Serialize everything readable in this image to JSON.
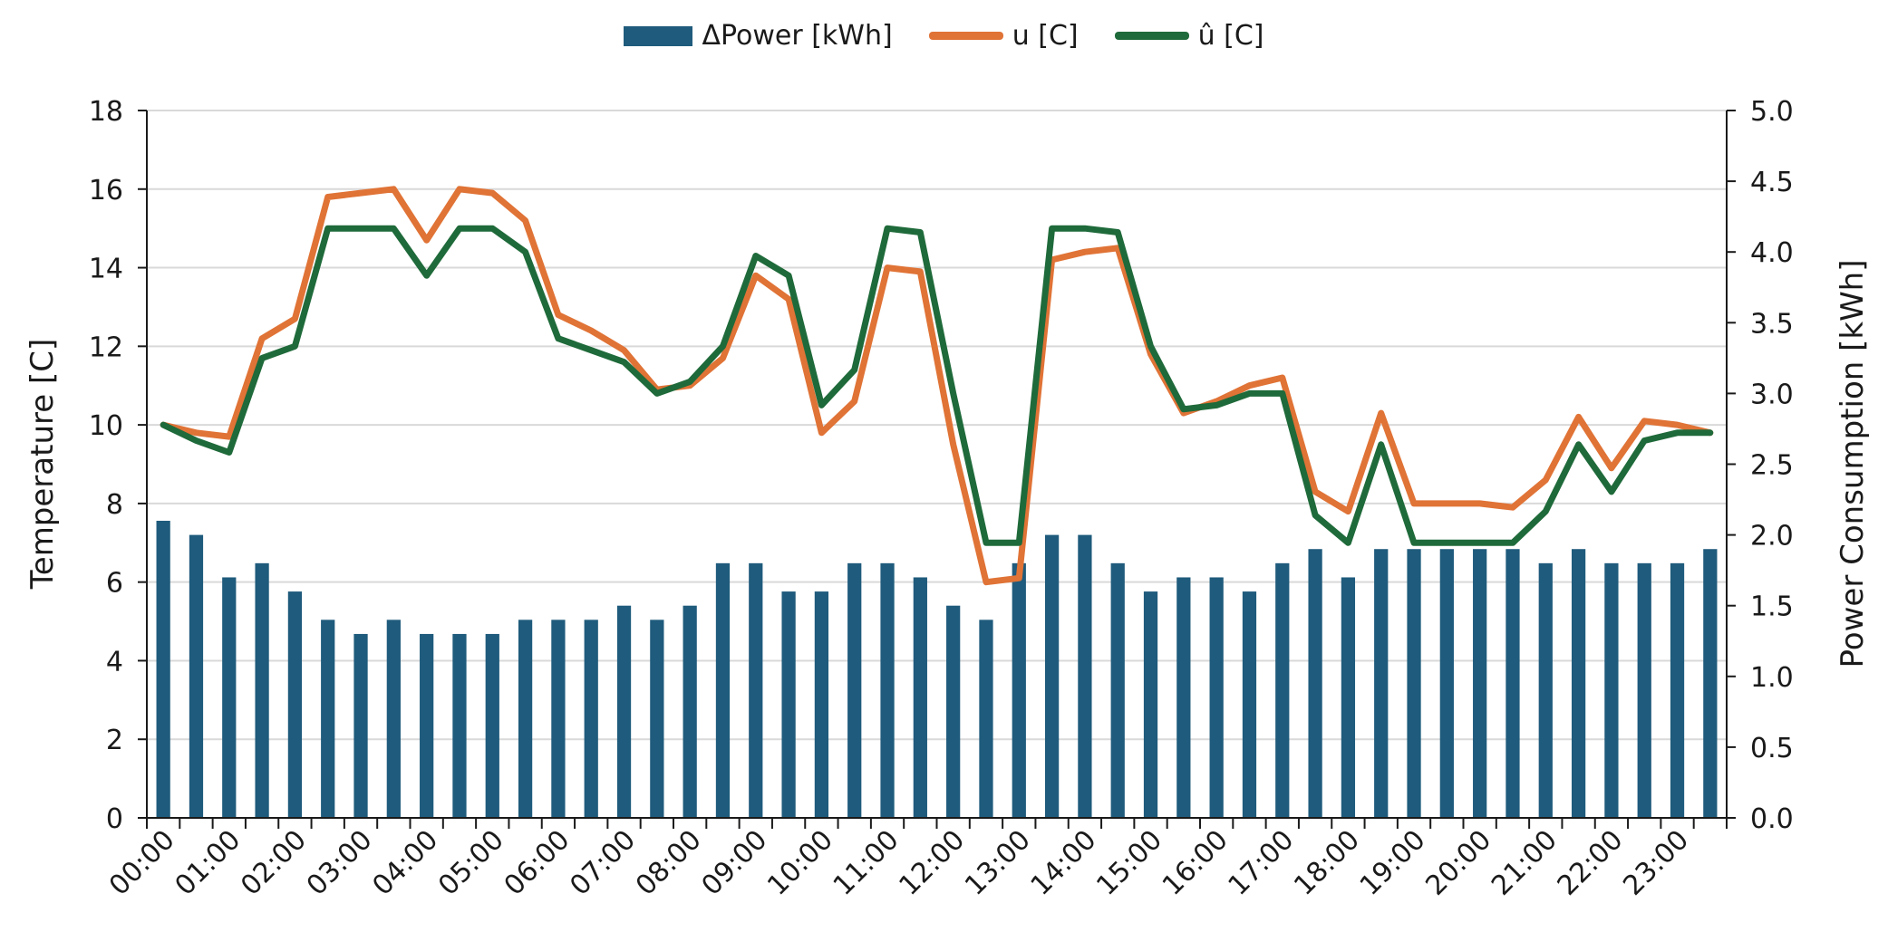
{
  "chart_data": {
    "type": "bar+line",
    "title": "",
    "legend": {
      "placement": "top-center",
      "entries": [
        "ΔPower [kWh]",
        "u [C]",
        "û [C]"
      ]
    },
    "colors": {
      "bar": "#1f5b7c",
      "u": "#e07336",
      "u_hat": "#1f6a3a",
      "grid": "#d9d9d9",
      "axis": "#1a1a1a"
    },
    "ylabel_left": "Temperature [C]",
    "ylabel_right": "Power Consumption [kWh]",
    "ylim_left": [
      0,
      18
    ],
    "ylim_right": [
      0,
      5
    ],
    "yticks_left": [
      "0",
      "2",
      "4",
      "6",
      "8",
      "10",
      "12",
      "14",
      "16",
      "18"
    ],
    "yticks_right": [
      "0.0",
      "0.5",
      "1.0",
      "1.5",
      "2.0",
      "2.5",
      "3.0",
      "3.5",
      "4.0",
      "4.5",
      "5.0"
    ],
    "grid": true,
    "x_tick_labels": [
      "00:00",
      "01:00",
      "02:00",
      "03:00",
      "04:00",
      "05:00",
      "06:00",
      "07:00",
      "08:00",
      "09:00",
      "10:00",
      "11:00",
      "12:00",
      "13:00",
      "14:00",
      "15:00",
      "16:00",
      "17:00",
      "18:00",
      "19:00",
      "20:00",
      "21:00",
      "22:00",
      "23:00"
    ],
    "n_points": 48,
    "series": [
      {
        "name": "ΔPower [kWh]",
        "type": "bar",
        "axis": "right",
        "values": [
          2.1,
          2.0,
          1.7,
          1.8,
          1.6,
          1.4,
          1.3,
          1.4,
          1.3,
          1.3,
          1.3,
          1.4,
          1.4,
          1.4,
          1.5,
          1.4,
          1.5,
          1.8,
          1.8,
          1.6,
          1.6,
          1.8,
          1.8,
          1.7,
          1.5,
          1.4,
          1.8,
          2.0,
          2.0,
          1.8,
          1.6,
          1.7,
          1.7,
          1.6,
          1.8,
          1.9,
          1.7,
          1.9,
          1.9,
          1.9,
          1.9,
          1.9,
          1.8,
          1.9,
          1.8,
          1.8,
          1.8,
          1.9
        ]
      },
      {
        "name": "u [C]",
        "type": "line",
        "axis": "left",
        "values": [
          10.0,
          9.8,
          9.7,
          12.2,
          12.7,
          15.8,
          15.9,
          16.0,
          14.7,
          16.0,
          15.9,
          15.2,
          12.8,
          12.4,
          11.9,
          10.9,
          11.0,
          11.7,
          13.8,
          13.2,
          9.8,
          10.6,
          14.0,
          13.9,
          9.5,
          6.0,
          6.1,
          14.2,
          14.4,
          14.5,
          11.8,
          10.3,
          10.6,
          11.0,
          11.2,
          8.3,
          7.8,
          10.3,
          8.0,
          8.0,
          8.0,
          7.9,
          8.6,
          10.2,
          8.9,
          10.1,
          10.0,
          9.8
        ]
      },
      {
        "name": "û [C]",
        "type": "line",
        "axis": "left",
        "values": [
          10.0,
          9.6,
          9.3,
          11.7,
          12.0,
          15.0,
          15.0,
          15.0,
          13.8,
          15.0,
          15.0,
          14.4,
          12.2,
          11.9,
          11.6,
          10.8,
          11.1,
          12.0,
          14.3,
          13.8,
          10.5,
          11.4,
          15.0,
          14.9,
          10.8,
          7.0,
          7.0,
          15.0,
          15.0,
          14.9,
          12.0,
          10.4,
          10.5,
          10.8,
          10.8,
          7.7,
          7.0,
          9.5,
          7.0,
          7.0,
          7.0,
          7.0,
          7.8,
          9.5,
          8.3,
          9.6,
          9.8,
          9.8
        ]
      }
    ]
  }
}
